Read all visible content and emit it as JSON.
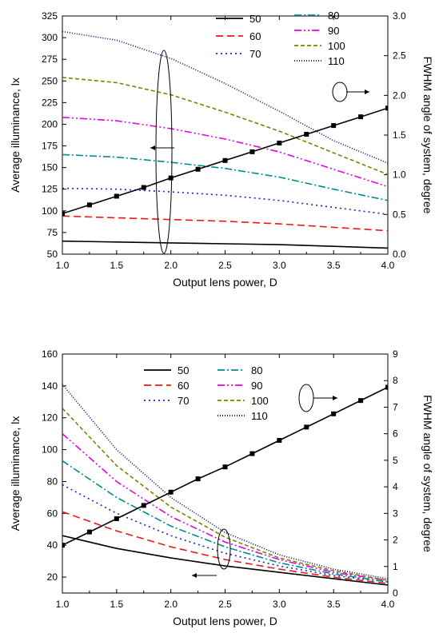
{
  "chart_data": [
    {
      "type": "line",
      "xlabel": "Output lens power, D",
      "ylabel": "Average illuminance, lx",
      "y2label": "FWHM angle of system, degree",
      "xlim": [
        1.0,
        4.0
      ],
      "ylim": [
        50,
        325
      ],
      "y2lim": [
        0.0,
        3.0
      ],
      "xticks": [
        "1.0",
        "1.5",
        "2.0",
        "2.5",
        "3.0",
        "3.5",
        "4.0"
      ],
      "yticks": [
        "50",
        "75",
        "100",
        "125",
        "150",
        "175",
        "200",
        "225",
        "250",
        "275",
        "300",
        "325"
      ],
      "y2ticks": [
        "0.0",
        "0.5",
        "1.0",
        "1.5",
        "2.0",
        "2.5",
        "3.0"
      ],
      "legend_columns": 2,
      "series": [
        {
          "name": "50",
          "color": "#000000",
          "dash": "solid",
          "points": [
            [
              1.0,
              65
            ],
            [
              1.5,
              64
            ],
            [
              2.0,
              63
            ],
            [
              2.5,
              62
            ],
            [
              3.0,
              61
            ],
            [
              3.5,
              59
            ],
            [
              4.0,
              57
            ]
          ]
        },
        {
          "name": "60",
          "color": "#e8191b",
          "dash": "dash",
          "points": [
            [
              1.0,
              94
            ],
            [
              1.5,
              92
            ],
            [
              2.0,
              90
            ],
            [
              2.5,
              88
            ],
            [
              3.0,
              85
            ],
            [
              3.5,
              81
            ],
            [
              4.0,
              77
            ]
          ]
        },
        {
          "name": "70",
          "color": "#1f1fd1",
          "dash": "dot",
          "points": [
            [
              1.0,
              126
            ],
            [
              1.5,
              125
            ],
            [
              2.0,
              122
            ],
            [
              2.5,
              118
            ],
            [
              3.0,
              112
            ],
            [
              3.5,
              104
            ],
            [
              4.0,
              96
            ]
          ]
        },
        {
          "name": "80",
          "color": "#008b8b",
          "dash": "dashdot",
          "points": [
            [
              1.0,
              165
            ],
            [
              1.5,
              162
            ],
            [
              2.0,
              156
            ],
            [
              2.5,
              149
            ],
            [
              3.0,
              139
            ],
            [
              3.5,
              125
            ],
            [
              4.0,
              112
            ]
          ]
        },
        {
          "name": "90",
          "color": "#e600e6",
          "dash": "dashdotdot",
          "points": [
            [
              1.0,
              208
            ],
            [
              1.5,
              204
            ],
            [
              2.0,
              195
            ],
            [
              2.5,
              183
            ],
            [
              3.0,
              168
            ],
            [
              3.5,
              148
            ],
            [
              4.0,
              128
            ]
          ]
        },
        {
          "name": "100",
          "color": "#808000",
          "dash": "shortdash",
          "points": [
            [
              1.0,
              254
            ],
            [
              1.5,
              248
            ],
            [
              2.0,
              234
            ],
            [
              2.5,
              214
            ],
            [
              3.0,
              192
            ],
            [
              3.5,
              167
            ],
            [
              4.0,
              142
            ]
          ]
        },
        {
          "name": "110",
          "color": "#00008b",
          "dash": "shortdot",
          "points": [
            [
              1.0,
              307
            ],
            [
              1.5,
              297
            ],
            [
              2.0,
              276
            ],
            [
              2.5,
              247
            ],
            [
              3.0,
              215
            ],
            [
              3.5,
              181
            ],
            [
              4.0,
              155
            ]
          ]
        },
        {
          "name": "",
          "axis": "right",
          "color": "#000000",
          "dash": "solid",
          "marker": "square",
          "points": [
            [
              1.0,
              0.51
            ],
            [
              1.25,
              0.62
            ],
            [
              1.5,
              0.73
            ],
            [
              1.75,
              0.84
            ],
            [
              2.0,
              0.96
            ],
            [
              2.25,
              1.07
            ],
            [
              2.5,
              1.18
            ],
            [
              2.75,
              1.29
            ],
            [
              3.0,
              1.4
            ],
            [
              3.25,
              1.51
            ],
            [
              3.5,
              1.62
            ],
            [
              3.75,
              1.73
            ],
            [
              4.0,
              1.84
            ]
          ]
        }
      ]
    },
    {
      "type": "line",
      "xlabel": "Output lens power, D",
      "ylabel": "Average illuminance, lx",
      "y2label": "FWHM angle of system, degree",
      "xlim": [
        1.0,
        4.0
      ],
      "ylim": [
        10,
        160
      ],
      "y2lim": [
        0,
        9
      ],
      "xticks": [
        "1.0",
        "1.5",
        "2.0",
        "2.5",
        "3.0",
        "3.5",
        "4.0"
      ],
      "yticks": [
        "20",
        "40",
        "60",
        "80",
        "100",
        "120",
        "140",
        "160"
      ],
      "y2ticks": [
        "0",
        "1",
        "2",
        "3",
        "4",
        "5",
        "6",
        "7",
        "8",
        "9"
      ],
      "legend_columns": 2,
      "series": [
        {
          "name": "50",
          "color": "#000000",
          "dash": "solid",
          "points": [
            [
              1.0,
              46
            ],
            [
              1.5,
              38
            ],
            [
              2.0,
              32
            ],
            [
              2.5,
              27
            ],
            [
              3.0,
              23
            ],
            [
              3.5,
              19
            ],
            [
              4.0,
              15
            ]
          ]
        },
        {
          "name": "60",
          "color": "#e8191b",
          "dash": "dash",
          "points": [
            [
              1.0,
              61
            ],
            [
              1.5,
              49
            ],
            [
              2.0,
              39
            ],
            [
              2.5,
              31
            ],
            [
              3.0,
              25
            ],
            [
              3.5,
              20
            ],
            [
              4.0,
              16
            ]
          ]
        },
        {
          "name": "70",
          "color": "#1f1fd1",
          "dash": "dot",
          "points": [
            [
              1.0,
              78
            ],
            [
              1.5,
              60
            ],
            [
              2.0,
              46
            ],
            [
              2.5,
              35
            ],
            [
              3.0,
              27
            ],
            [
              3.5,
              21
            ],
            [
              4.0,
              17
            ]
          ]
        },
        {
          "name": "80",
          "color": "#008b8b",
          "dash": "dashdot",
          "points": [
            [
              1.0,
              93
            ],
            [
              1.5,
              70
            ],
            [
              2.0,
              52
            ],
            [
              2.5,
              39
            ],
            [
              3.0,
              29
            ],
            [
              3.5,
              22
            ],
            [
              4.0,
              17
            ]
          ]
        },
        {
          "name": "90",
          "color": "#e600e6",
          "dash": "dashdotdot",
          "points": [
            [
              1.0,
              110
            ],
            [
              1.5,
              80
            ],
            [
              2.0,
              58
            ],
            [
              2.5,
              42
            ],
            [
              3.0,
              31
            ],
            [
              3.5,
              23
            ],
            [
              4.0,
              18
            ]
          ]
        },
        {
          "name": "100",
          "color": "#808000",
          "dash": "shortdash",
          "points": [
            [
              1.0,
              126
            ],
            [
              1.5,
              90
            ],
            [
              2.0,
              64
            ],
            [
              2.5,
              45
            ],
            [
              3.0,
              32
            ],
            [
              3.5,
              24
            ],
            [
              4.0,
              18
            ]
          ]
        },
        {
          "name": "110",
          "color": "#00008b",
          "dash": "shortdot",
          "points": [
            [
              1.0,
              141
            ],
            [
              1.5,
              100
            ],
            [
              2.0,
              70
            ],
            [
              2.5,
              48
            ],
            [
              3.0,
              34
            ],
            [
              3.5,
              25
            ],
            [
              4.0,
              19
            ]
          ]
        },
        {
          "name": "",
          "axis": "right",
          "color": "#000000",
          "dash": "solid",
          "marker": "square",
          "points": [
            [
              1.0,
              1.8
            ],
            [
              1.25,
              2.3
            ],
            [
              1.5,
              2.8
            ],
            [
              1.75,
              3.3
            ],
            [
              2.0,
              3.8
            ],
            [
              2.25,
              4.3
            ],
            [
              2.5,
              4.75
            ],
            [
              2.75,
              5.25
            ],
            [
              3.0,
              5.75
            ],
            [
              3.25,
              6.25
            ],
            [
              3.5,
              6.75
            ],
            [
              3.75,
              7.25
            ],
            [
              4.0,
              7.75
            ]
          ]
        }
      ]
    }
  ]
}
